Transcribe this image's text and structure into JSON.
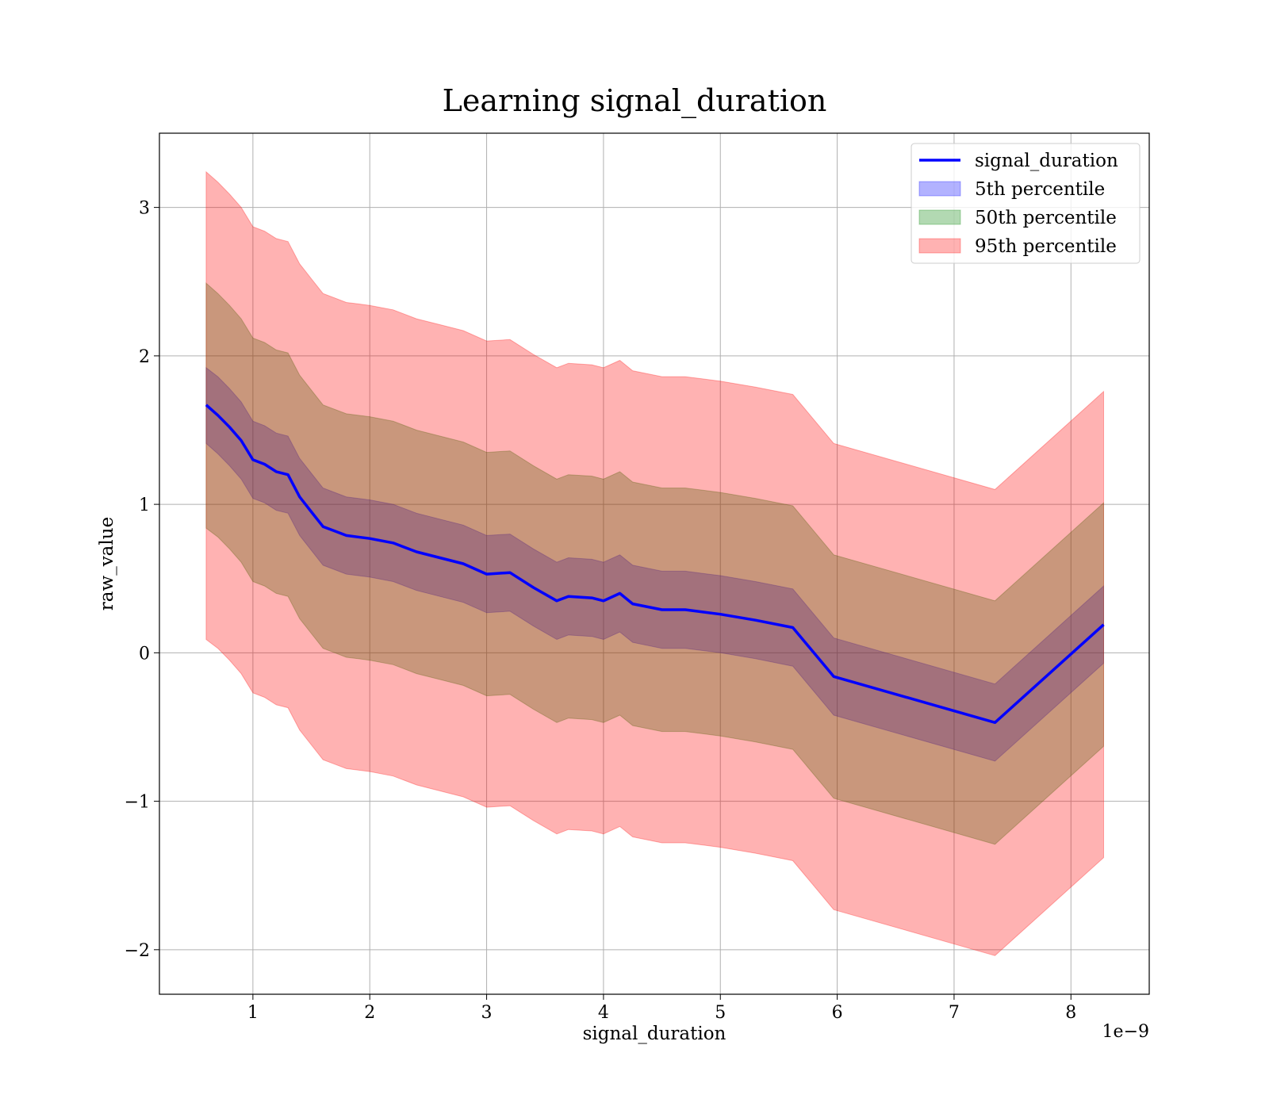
{
  "chart_data": {
    "type": "area",
    "title": "Learning signal_duration",
    "xlabel": "signal_duration",
    "ylabel": "raw_value",
    "x_scale_label": "1e−9",
    "xlim": [
      0.2,
      8.67
    ],
    "ylim": [
      -2.3,
      3.5
    ],
    "x_ticks": [
      1,
      2,
      3,
      4,
      5,
      6,
      7,
      8
    ],
    "x_tick_labels": [
      "1",
      "2",
      "3",
      "4",
      "5",
      "6",
      "7",
      "8"
    ],
    "y_ticks": [
      -2,
      -1,
      0,
      1,
      2,
      3
    ],
    "y_tick_labels": [
      "−2",
      "−1",
      "0",
      "1",
      "2",
      "3"
    ],
    "grid": true,
    "legend_position": "top-right",
    "x": [
      0.6,
      0.7,
      0.8,
      0.9,
      1.0,
      1.1,
      1.2,
      1.3,
      1.4,
      1.5,
      1.6,
      1.7,
      1.8,
      1.9,
      2.0,
      2.2,
      2.4,
      2.6,
      2.8,
      3.0,
      3.2,
      3.4,
      3.6,
      3.7,
      3.9,
      4.0,
      4.14,
      4.25,
      4.5,
      4.7,
      5.0,
      5.3,
      5.62,
      5.97,
      7.35,
      8.28
    ],
    "series": [
      {
        "name": "signal_duration",
        "kind": "line",
        "color": "#0000ff",
        "values": [
          1.67,
          1.6,
          1.52,
          1.43,
          1.3,
          1.27,
          1.22,
          1.2,
          1.05,
          0.95,
          0.85,
          0.82,
          0.79,
          0.78,
          0.77,
          0.74,
          0.68,
          0.64,
          0.6,
          0.53,
          0.54,
          0.44,
          0.35,
          0.38,
          0.37,
          0.35,
          0.4,
          0.33,
          0.29,
          0.29,
          0.26,
          0.22,
          0.17,
          -0.16,
          -0.47,
          0.19
        ]
      },
      {
        "name": "5th percentile",
        "kind": "band",
        "color": "#0000ff",
        "upper": [
          1.92,
          1.86,
          1.78,
          1.69,
          1.56,
          1.53,
          1.48,
          1.46,
          1.31,
          1.21,
          1.11,
          1.08,
          1.05,
          1.04,
          1.03,
          1.0,
          0.94,
          0.9,
          0.86,
          0.79,
          0.8,
          0.7,
          0.61,
          0.64,
          0.63,
          0.61,
          0.66,
          0.59,
          0.55,
          0.55,
          0.52,
          0.48,
          0.43,
          0.1,
          -0.21,
          0.45
        ],
        "lower": [
          1.41,
          1.34,
          1.26,
          1.17,
          1.04,
          1.01,
          0.96,
          0.94,
          0.79,
          0.69,
          0.59,
          0.56,
          0.53,
          0.52,
          0.51,
          0.48,
          0.42,
          0.38,
          0.34,
          0.27,
          0.28,
          0.18,
          0.09,
          0.12,
          0.11,
          0.09,
          0.14,
          0.07,
          0.03,
          0.03,
          0.0,
          -0.04,
          -0.09,
          -0.42,
          -0.73,
          -0.07
        ]
      },
      {
        "name": "50th percentile",
        "kind": "band",
        "color": "#008000",
        "upper": [
          2.49,
          2.42,
          2.34,
          2.25,
          2.12,
          2.09,
          2.04,
          2.02,
          1.87,
          1.77,
          1.67,
          1.64,
          1.61,
          1.6,
          1.59,
          1.56,
          1.5,
          1.46,
          1.42,
          1.35,
          1.36,
          1.26,
          1.17,
          1.2,
          1.19,
          1.17,
          1.22,
          1.15,
          1.11,
          1.11,
          1.08,
          1.04,
          0.99,
          0.66,
          0.35,
          1.01
        ],
        "lower": [
          0.84,
          0.78,
          0.7,
          0.61,
          0.48,
          0.45,
          0.4,
          0.38,
          0.23,
          0.13,
          0.03,
          0.0,
          -0.03,
          -0.04,
          -0.05,
          -0.08,
          -0.14,
          -0.18,
          -0.22,
          -0.29,
          -0.28,
          -0.38,
          -0.47,
          -0.44,
          -0.45,
          -0.47,
          -0.42,
          -0.49,
          -0.53,
          -0.53,
          -0.56,
          -0.6,
          -0.65,
          -0.98,
          -1.29,
          -0.63
        ]
      },
      {
        "name": "95th percentile",
        "kind": "band",
        "color": "#ff0000",
        "upper": [
          3.24,
          3.17,
          3.09,
          3.0,
          2.87,
          2.84,
          2.79,
          2.77,
          2.62,
          2.52,
          2.42,
          2.39,
          2.36,
          2.35,
          2.34,
          2.31,
          2.25,
          2.21,
          2.17,
          2.1,
          2.11,
          2.01,
          1.92,
          1.95,
          1.94,
          1.92,
          1.97,
          1.9,
          1.86,
          1.86,
          1.83,
          1.79,
          1.74,
          1.41,
          1.1,
          1.76
        ],
        "lower": [
          0.09,
          0.03,
          -0.05,
          -0.14,
          -0.27,
          -0.3,
          -0.35,
          -0.37,
          -0.52,
          -0.62,
          -0.72,
          -0.75,
          -0.78,
          -0.79,
          -0.8,
          -0.83,
          -0.89,
          -0.93,
          -0.97,
          -1.04,
          -1.03,
          -1.13,
          -1.22,
          -1.19,
          -1.2,
          -1.22,
          -1.17,
          -1.24,
          -1.28,
          -1.28,
          -1.31,
          -1.35,
          -1.4,
          -1.73,
          -2.04,
          -1.38
        ]
      }
    ]
  }
}
